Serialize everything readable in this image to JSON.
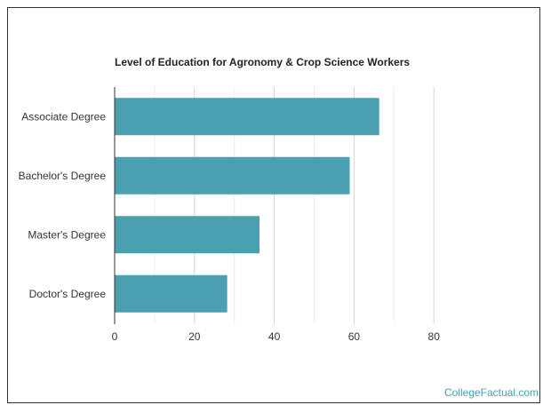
{
  "chart_data": {
    "type": "bar",
    "orientation": "horizontal",
    "title": "Level of Education for Agronomy & Crop Science Workers",
    "categories": [
      "Associate Degree",
      "Bachelor's Degree",
      "Master's Degree",
      "Doctor's Degree"
    ],
    "values": [
      66.3,
      58.9,
      36.3,
      28.2
    ],
    "xlim": [
      0,
      80
    ],
    "xticks": [
      0,
      20,
      40,
      60,
      80
    ],
    "grid": true,
    "bar_color": "#4a9fb0",
    "xlabel": "",
    "ylabel": ""
  },
  "watermark": "CollegeFactual.com"
}
